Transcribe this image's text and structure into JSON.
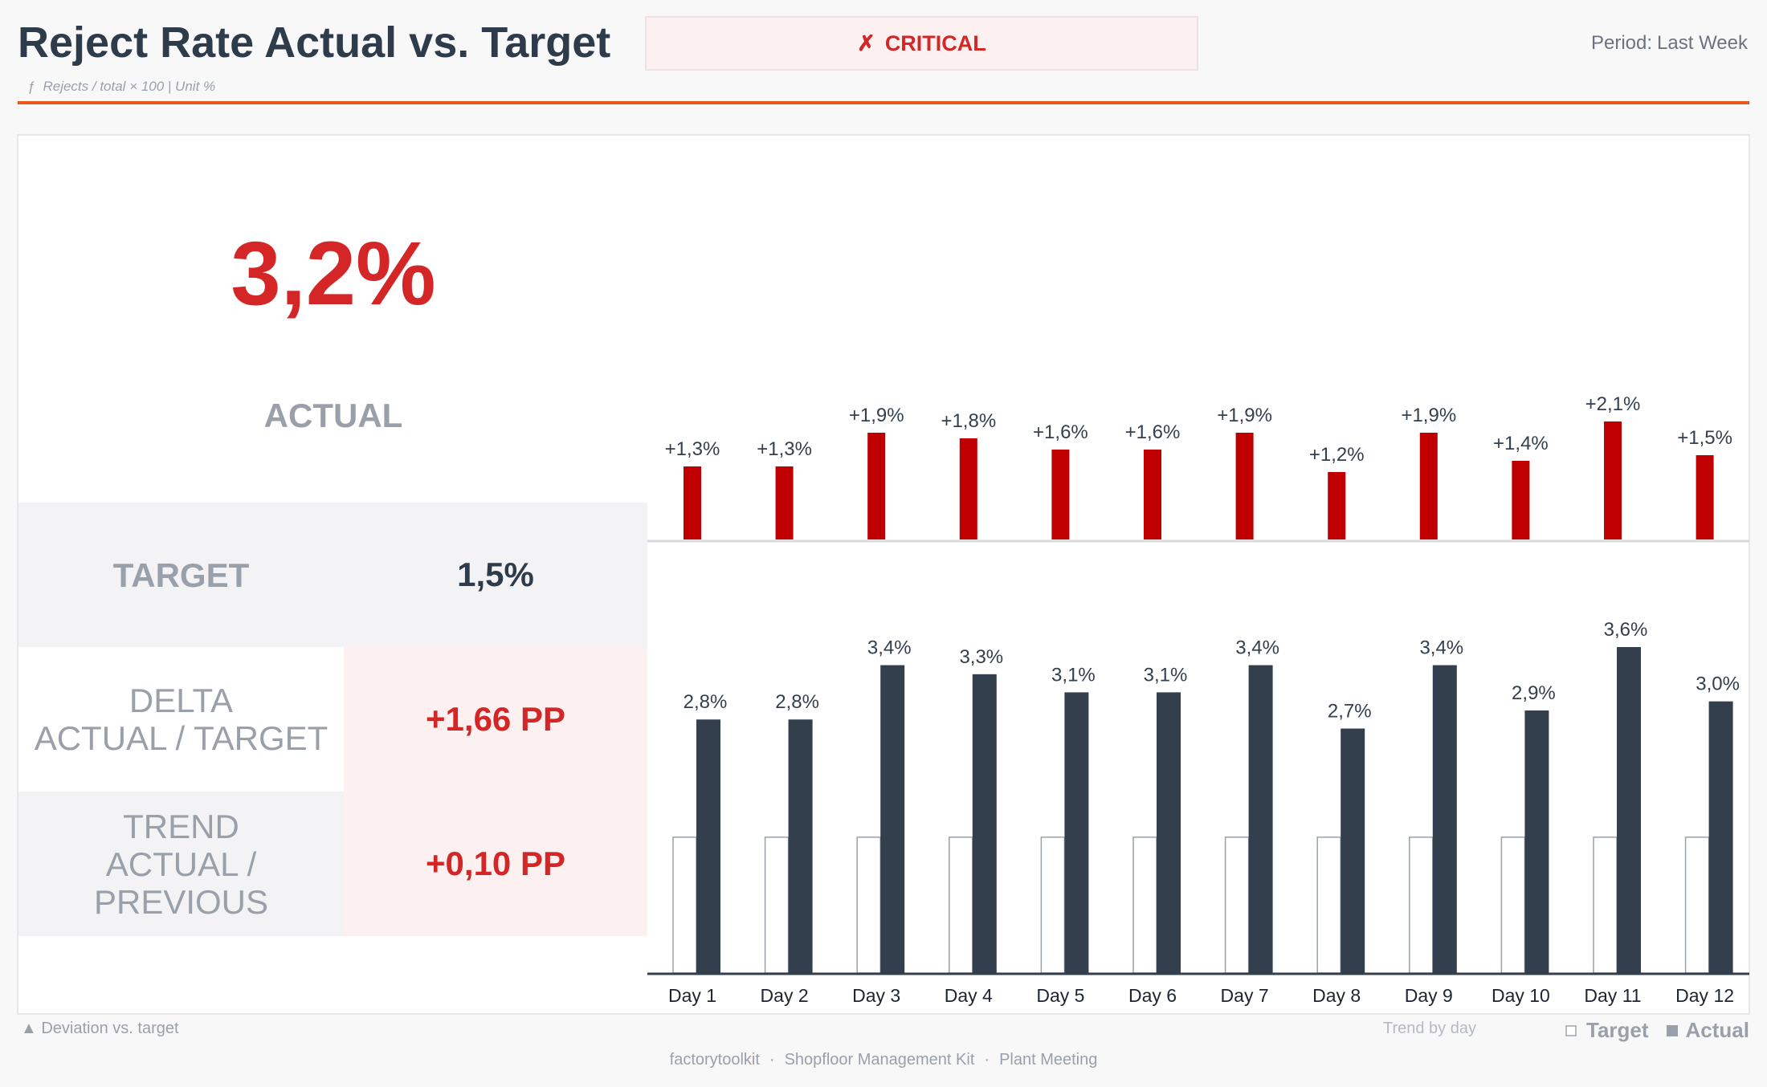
{
  "header": {
    "title": "Reject Rate Actual vs. Target",
    "formula_icon": "function-icon",
    "formula": "Rejects / total × 100 | Unit %",
    "status_icon": "x-mark-icon",
    "status": "CRITICAL",
    "period_label": "Period:",
    "period_value": "Last Week"
  },
  "kpi": {
    "actual_value": "3,2%",
    "actual_label": "ACTUAL",
    "target_label": "TARGET",
    "target_value": "1,5%",
    "delta_label_line1": "DELTA",
    "delta_label_line2": "ACTUAL / TARGET",
    "delta_value": "+1,66 PP",
    "trend_label_line1": "TREND",
    "trend_label_line2": "ACTUAL /",
    "trend_label_line3": "PREVIOUS",
    "trend_value": "+0,10 PP"
  },
  "colors": {
    "critical": "#d42626",
    "deviation_bar": "#c00000",
    "actual_bar": "#333f4c",
    "target_bar_stroke": "#9aa0aa",
    "accent_rule": "#e8561c"
  },
  "chart_data": [
    {
      "type": "bar",
      "title": "",
      "description_label": "Deviation vs. target",
      "categories": [
        "Day 1",
        "Day 2",
        "Day 3",
        "Day 4",
        "Day 5",
        "Day 6",
        "Day 7",
        "Day 8",
        "Day 9",
        "Day 10",
        "Day 11",
        "Day 12"
      ],
      "values": [
        1.3,
        1.3,
        1.9,
        1.8,
        1.6,
        1.6,
        1.9,
        1.2,
        1.9,
        1.4,
        2.1,
        1.5
      ],
      "data_labels": [
        "+1,3%",
        "+1,3%",
        "+1,9%",
        "+1,8%",
        "+1,6%",
        "+1,6%",
        "+1,9%",
        "+1,2%",
        "+1,9%",
        "+1,4%",
        "+2,1%",
        "+1,5%"
      ],
      "ylim": [
        0,
        2.2
      ],
      "grid": false
    },
    {
      "type": "bar",
      "title": "",
      "description_label": "Trend by day",
      "categories": [
        "Day 1",
        "Day 2",
        "Day 3",
        "Day 4",
        "Day 5",
        "Day 6",
        "Day 7",
        "Day 8",
        "Day 9",
        "Day 10",
        "Day 11",
        "Day 12"
      ],
      "series": [
        {
          "name": "Target",
          "values": [
            1.5,
            1.5,
            1.5,
            1.5,
            1.5,
            1.5,
            1.5,
            1.5,
            1.5,
            1.5,
            1.5,
            1.5
          ]
        },
        {
          "name": "Actual",
          "values": [
            2.8,
            2.8,
            3.4,
            3.3,
            3.1,
            3.1,
            3.4,
            2.7,
            3.4,
            2.9,
            3.6,
            3.0
          ]
        }
      ],
      "data_labels": [
        "2,8%",
        "2,8%",
        "3,4%",
        "3,3%",
        "3,1%",
        "3,1%",
        "3,4%",
        "2,7%",
        "3,4%",
        "2,9%",
        "3,6%",
        "3,0%"
      ],
      "ylim": [
        0,
        3.6
      ],
      "grid": false,
      "legend": "bottom-right"
    }
  ],
  "footer": {
    "deviation_icon": "triangle-up-icon",
    "deviation_text": "Deviation vs. target",
    "trend_text": "Trend by day",
    "legend_target": "Target",
    "legend_actual": "Actual",
    "credit_1": "factorytoolkit",
    "credit_2": "Shopfloor Management Kit",
    "credit_3": "Plant Meeting",
    "separator": "·"
  }
}
